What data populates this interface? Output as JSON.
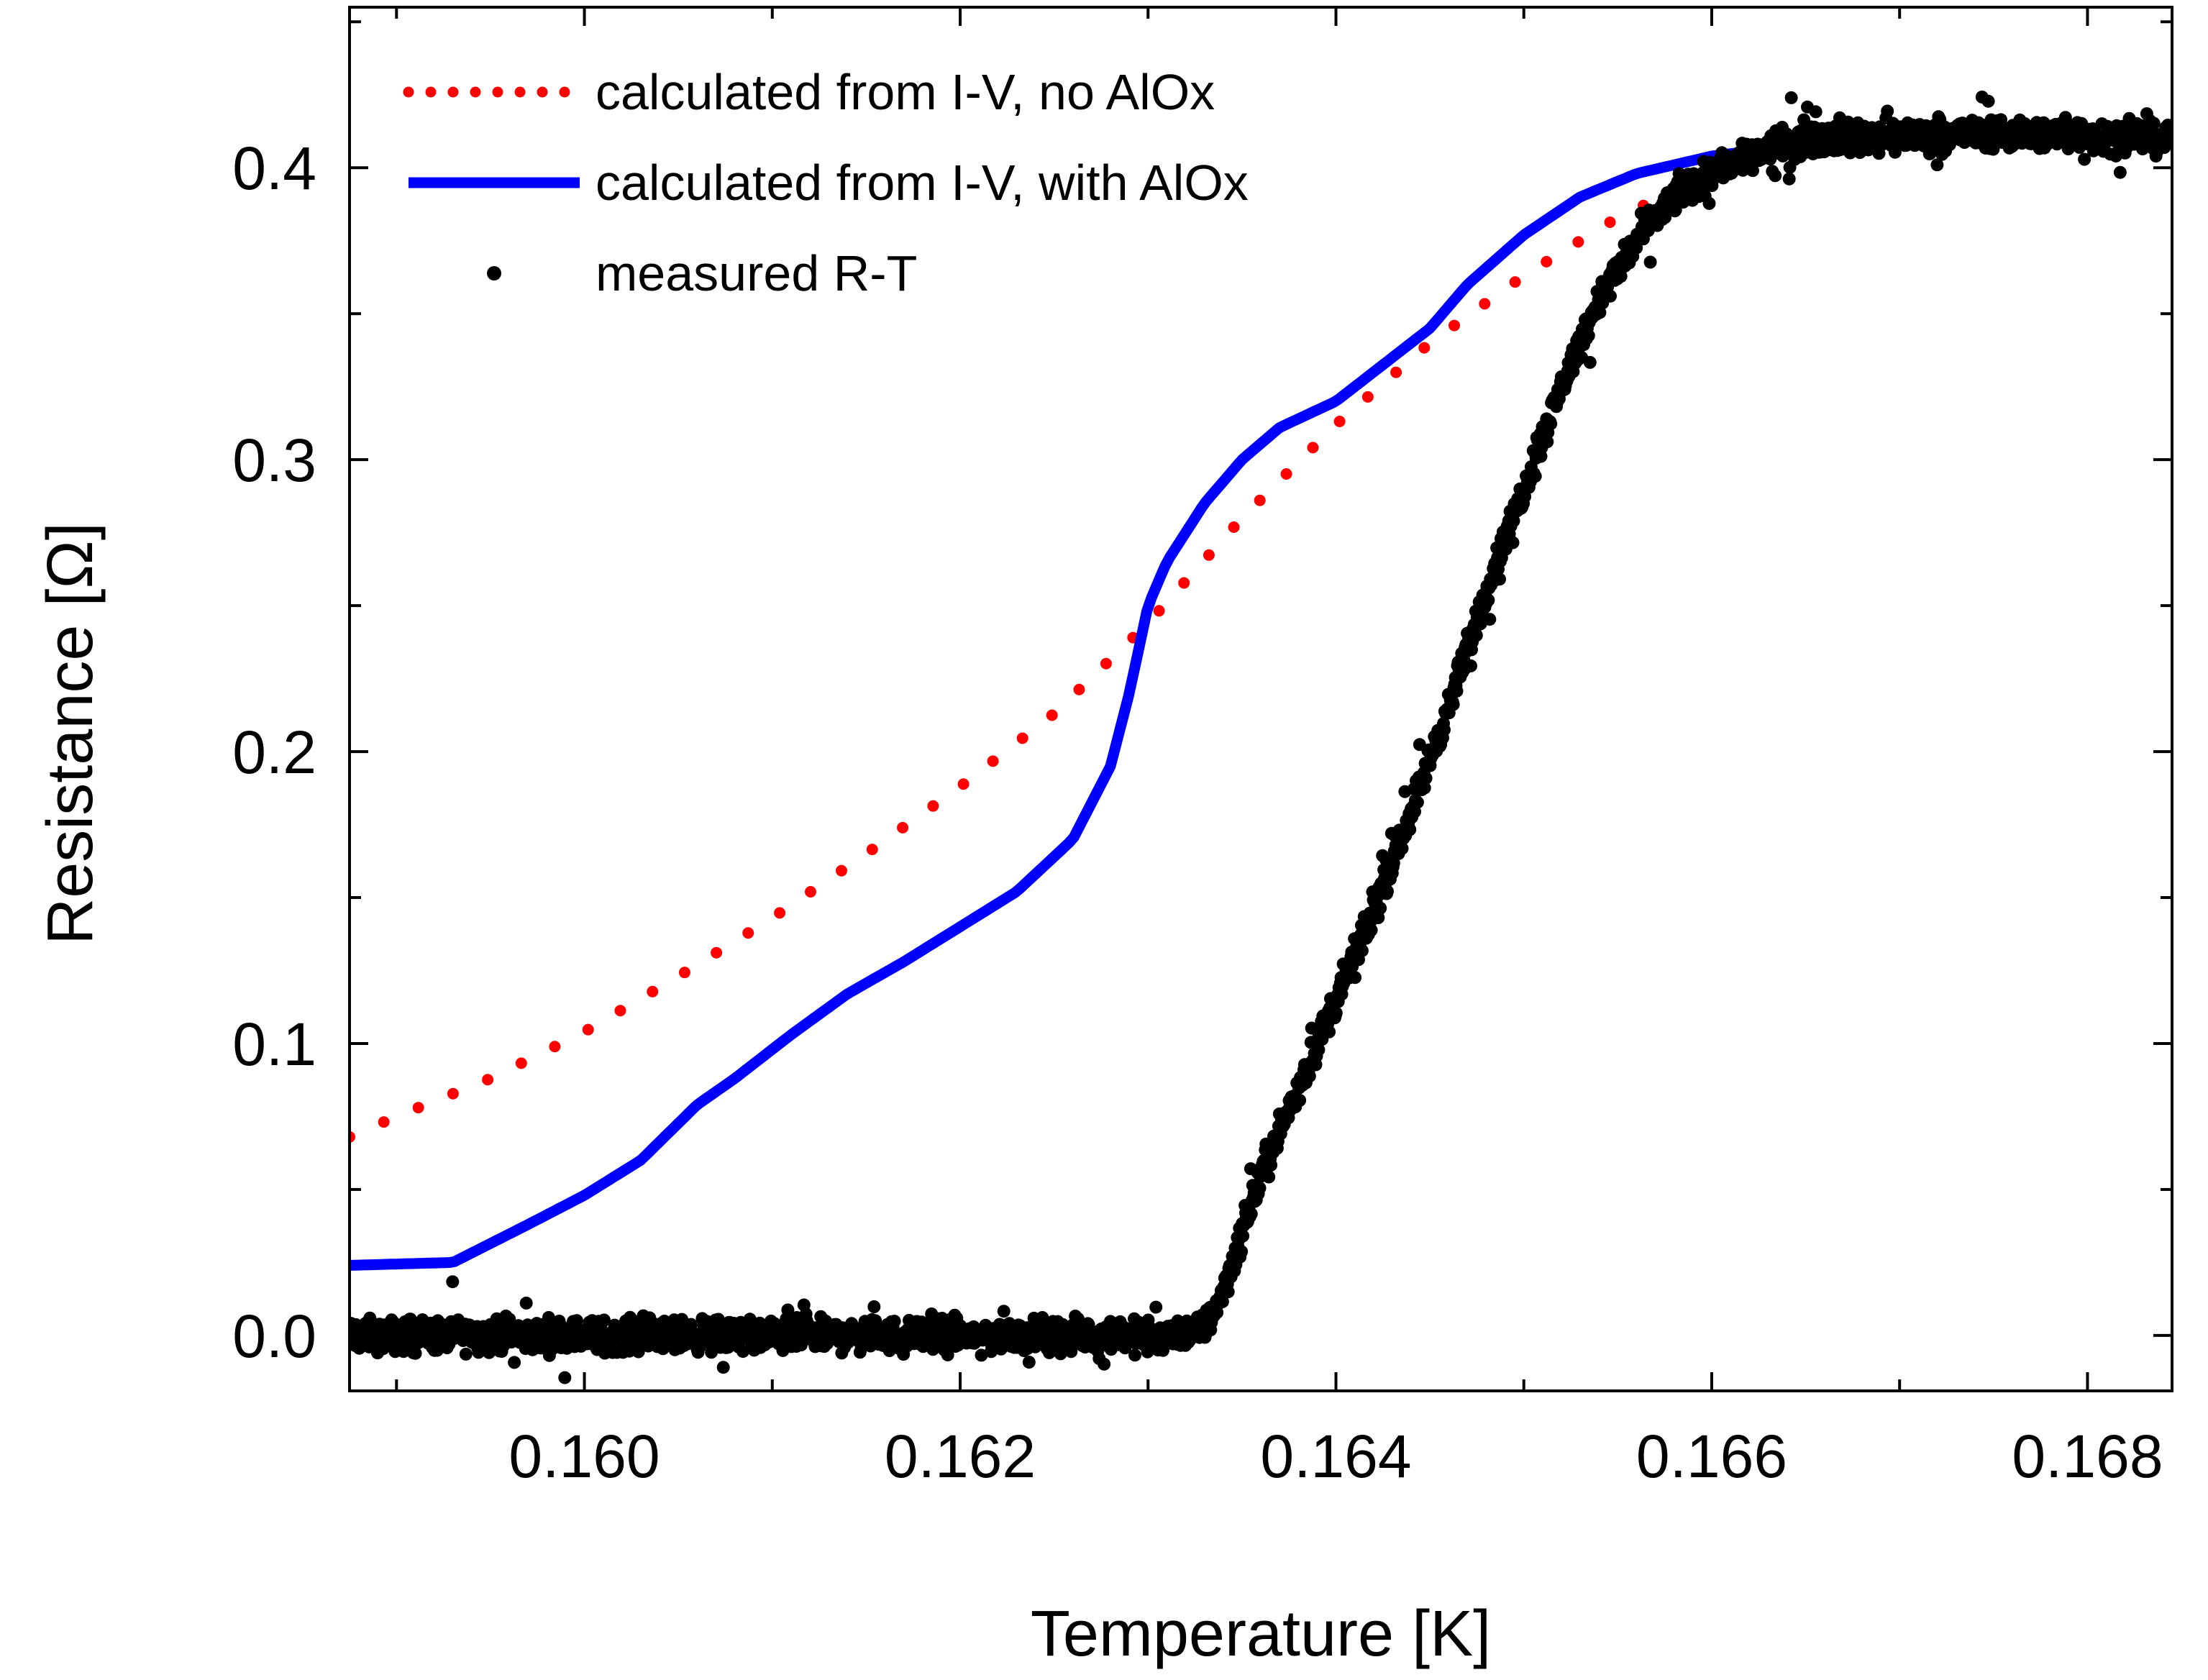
{
  "chart_data": {
    "type": "line",
    "title": "",
    "xlabel": "Temperature [K]",
    "ylabel": "Resistance [Ω]",
    "xlim": [
      0.15875,
      0.16845
    ],
    "ylim": [
      -0.019,
      0.455
    ],
    "x_ticks": [
      0.16,
      0.162,
      0.164,
      0.166,
      0.168
    ],
    "x_tick_labels": [
      "0.160",
      "0.162",
      "0.164",
      "0.166",
      "0.168"
    ],
    "y_ticks": [
      0.0,
      0.1,
      0.2,
      0.3,
      0.4
    ],
    "y_tick_labels": [
      "0.0",
      "0.1",
      "0.2",
      "0.3",
      "0.4"
    ],
    "grid": false,
    "legend_position": "top-left",
    "colors": {
      "no_alox": "#ff0000",
      "with_alox": "#0000ff",
      "measured": "#000000"
    },
    "series": [
      {
        "name": "calculated from I-V, no AlOx",
        "style": "dotted",
        "color": "#ff0000",
        "points": [
          [
            0.15875,
            0.068
          ],
          [
            0.159,
            0.075
          ],
          [
            0.1595,
            0.088
          ],
          [
            0.16,
            0.104
          ],
          [
            0.1605,
            0.123
          ],
          [
            0.161,
            0.143
          ],
          [
            0.1615,
            0.165
          ],
          [
            0.162,
            0.188
          ],
          [
            0.1625,
            0.213
          ],
          [
            0.163,
            0.244
          ],
          [
            0.1635,
            0.28
          ],
          [
            0.164,
            0.312
          ],
          [
            0.1645,
            0.34
          ],
          [
            0.165,
            0.363
          ],
          [
            0.1655,
            0.383
          ],
          [
            0.166,
            0.398
          ],
          [
            0.1665,
            0.406
          ],
          [
            0.167,
            0.41
          ],
          [
            0.1675,
            0.411
          ],
          [
            0.16845,
            0.412
          ]
        ]
      },
      {
        "name": "calculated from I-V, with AlOx",
        "style": "solid",
        "color": "#0000ff",
        "points": [
          [
            0.15875,
            0.024
          ],
          [
            0.1593,
            0.025
          ],
          [
            0.1597,
            0.038
          ],
          [
            0.16,
            0.048
          ],
          [
            0.1603,
            0.06
          ],
          [
            0.1606,
            0.079
          ],
          [
            0.1608,
            0.088
          ],
          [
            0.1611,
            0.103
          ],
          [
            0.1614,
            0.117
          ],
          [
            0.1617,
            0.128
          ],
          [
            0.162,
            0.14
          ],
          [
            0.1623,
            0.152
          ],
          [
            0.1626,
            0.17
          ],
          [
            0.1628,
            0.195
          ],
          [
            0.1629,
            0.22
          ],
          [
            0.163,
            0.25
          ],
          [
            0.1631,
            0.265
          ],
          [
            0.1633,
            0.285
          ],
          [
            0.1635,
            0.3
          ],
          [
            0.1637,
            0.311
          ],
          [
            0.164,
            0.32
          ],
          [
            0.1642,
            0.33
          ],
          [
            0.1645,
            0.345
          ],
          [
            0.1647,
            0.36
          ],
          [
            0.165,
            0.377
          ],
          [
            0.1653,
            0.39
          ],
          [
            0.1656,
            0.398
          ],
          [
            0.166,
            0.404
          ],
          [
            0.1665,
            0.408
          ],
          [
            0.167,
            0.41
          ],
          [
            0.1675,
            0.411
          ],
          [
            0.16845,
            0.411
          ]
        ]
      },
      {
        "name": "measured R-T",
        "style": "scatter",
        "color": "#000000",
        "points": [
          [
            0.15875,
            0.0
          ],
          [
            0.159,
            0.0
          ],
          [
            0.1595,
            0.0
          ],
          [
            0.16,
            0.0
          ],
          [
            0.1605,
            0.0
          ],
          [
            0.161,
            0.0
          ],
          [
            0.1615,
            0.0
          ],
          [
            0.162,
            0.0
          ],
          [
            0.1625,
            0.0
          ],
          [
            0.163,
            0.0
          ],
          [
            0.1633,
            0.002
          ],
          [
            0.1634,
            0.015
          ],
          [
            0.1635,
            0.035
          ],
          [
            0.1636,
            0.055
          ],
          [
            0.1638,
            0.085
          ],
          [
            0.164,
            0.115
          ],
          [
            0.1642,
            0.145
          ],
          [
            0.1644,
            0.18
          ],
          [
            0.1646,
            0.215
          ],
          [
            0.1648,
            0.255
          ],
          [
            0.165,
            0.29
          ],
          [
            0.1652,
            0.325
          ],
          [
            0.1654,
            0.355
          ],
          [
            0.1656,
            0.375
          ],
          [
            0.1658,
            0.39
          ],
          [
            0.166,
            0.398
          ],
          [
            0.1662,
            0.405
          ],
          [
            0.1665,
            0.41
          ],
          [
            0.167,
            0.411
          ],
          [
            0.1675,
            0.412
          ],
          [
            0.16845,
            0.41
          ]
        ],
        "noise_amplitude": 0.008
      }
    ]
  }
}
